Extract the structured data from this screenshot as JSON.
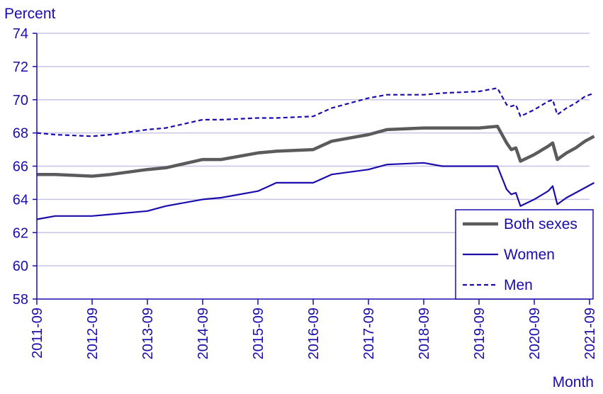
{
  "chart_data": {
    "type": "line",
    "ylabel": "Percent",
    "xlabel": "Month",
    "ylim": [
      58,
      74
    ],
    "yticks": [
      58,
      60,
      62,
      64,
      66,
      68,
      70,
      72,
      74
    ],
    "xtick_labels": [
      "2011-09",
      "2012-09",
      "2013-09",
      "2014-09",
      "2015-09",
      "2016-09",
      "2017-09",
      "2018-09",
      "2019-09",
      "2020-09",
      "2021-09"
    ],
    "grid": "horizontal",
    "legend_position": "bottom-right",
    "colors": {
      "axis": "#1a0dab",
      "grid": "#c8c4e6",
      "both": "#5b5b5b",
      "women": "#1a0dab",
      "men": "#1a0dab"
    },
    "series": [
      {
        "name": "Both sexes",
        "style": "solid-thick",
        "points": [
          [
            "2011-09",
            65.5
          ],
          [
            "2012-01",
            65.5
          ],
          [
            "2012-09",
            65.4
          ],
          [
            "2013-01",
            65.5
          ],
          [
            "2013-09",
            65.8
          ],
          [
            "2014-01",
            65.9
          ],
          [
            "2014-09",
            66.4
          ],
          [
            "2015-01",
            66.4
          ],
          [
            "2015-09",
            66.8
          ],
          [
            "2016-01",
            66.9
          ],
          [
            "2016-09",
            67.0
          ],
          [
            "2017-01",
            67.5
          ],
          [
            "2017-09",
            67.9
          ],
          [
            "2018-01",
            68.2
          ],
          [
            "2018-09",
            68.3
          ],
          [
            "2019-01",
            68.3
          ],
          [
            "2019-09",
            68.3
          ],
          [
            "2020-01",
            68.4
          ],
          [
            "2020-03",
            67.4
          ],
          [
            "2020-04",
            67.0
          ],
          [
            "2020-05",
            67.1
          ],
          [
            "2020-06",
            66.3
          ],
          [
            "2020-09",
            66.7
          ],
          [
            "2020-12",
            67.2
          ],
          [
            "2021-01",
            67.4
          ],
          [
            "2021-02",
            66.4
          ],
          [
            "2021-04",
            66.8
          ],
          [
            "2021-06",
            67.1
          ],
          [
            "2021-08",
            67.5
          ],
          [
            "2021-10",
            67.8
          ]
        ]
      },
      {
        "name": "Women",
        "style": "solid-thin",
        "points": [
          [
            "2011-09",
            62.8
          ],
          [
            "2012-01",
            63.0
          ],
          [
            "2012-09",
            63.0
          ],
          [
            "2013-01",
            63.1
          ],
          [
            "2013-09",
            63.3
          ],
          [
            "2014-01",
            63.6
          ],
          [
            "2014-09",
            64.0
          ],
          [
            "2015-01",
            64.1
          ],
          [
            "2015-09",
            64.5
          ],
          [
            "2016-01",
            65.0
          ],
          [
            "2016-09",
            65.0
          ],
          [
            "2017-01",
            65.5
          ],
          [
            "2017-09",
            65.8
          ],
          [
            "2018-01",
            66.1
          ],
          [
            "2018-09",
            66.2
          ],
          [
            "2019-01",
            66.0
          ],
          [
            "2019-09",
            66.0
          ],
          [
            "2020-01",
            66.0
          ],
          [
            "2020-03",
            64.6
          ],
          [
            "2020-04",
            64.3
          ],
          [
            "2020-05",
            64.4
          ],
          [
            "2020-06",
            63.6
          ],
          [
            "2020-09",
            64.0
          ],
          [
            "2020-12",
            64.5
          ],
          [
            "2021-01",
            64.8
          ],
          [
            "2021-02",
            63.7
          ],
          [
            "2021-04",
            64.1
          ],
          [
            "2021-06",
            64.4
          ],
          [
            "2021-08",
            64.7
          ],
          [
            "2021-10",
            65.0
          ]
        ]
      },
      {
        "name": "Men",
        "style": "dashed",
        "points": [
          [
            "2011-09",
            68.0
          ],
          [
            "2012-01",
            67.9
          ],
          [
            "2012-09",
            67.8
          ],
          [
            "2013-01",
            67.9
          ],
          [
            "2013-09",
            68.2
          ],
          [
            "2014-01",
            68.3
          ],
          [
            "2014-09",
            68.8
          ],
          [
            "2015-01",
            68.8
          ],
          [
            "2015-09",
            68.9
          ],
          [
            "2016-01",
            68.9
          ],
          [
            "2016-09",
            69.0
          ],
          [
            "2017-01",
            69.5
          ],
          [
            "2017-09",
            70.1
          ],
          [
            "2018-01",
            70.3
          ],
          [
            "2018-09",
            70.3
          ],
          [
            "2019-01",
            70.4
          ],
          [
            "2019-09",
            70.5
          ],
          [
            "2020-01",
            70.7
          ],
          [
            "2020-03",
            69.7
          ],
          [
            "2020-04",
            69.6
          ],
          [
            "2020-05",
            69.7
          ],
          [
            "2020-06",
            69.0
          ],
          [
            "2020-09",
            69.4
          ],
          [
            "2020-12",
            69.9
          ],
          [
            "2021-01",
            70.0
          ],
          [
            "2021-02",
            69.1
          ],
          [
            "2021-04",
            69.5
          ],
          [
            "2021-06",
            69.8
          ],
          [
            "2021-08",
            70.2
          ],
          [
            "2021-10",
            70.4
          ]
        ]
      }
    ]
  }
}
